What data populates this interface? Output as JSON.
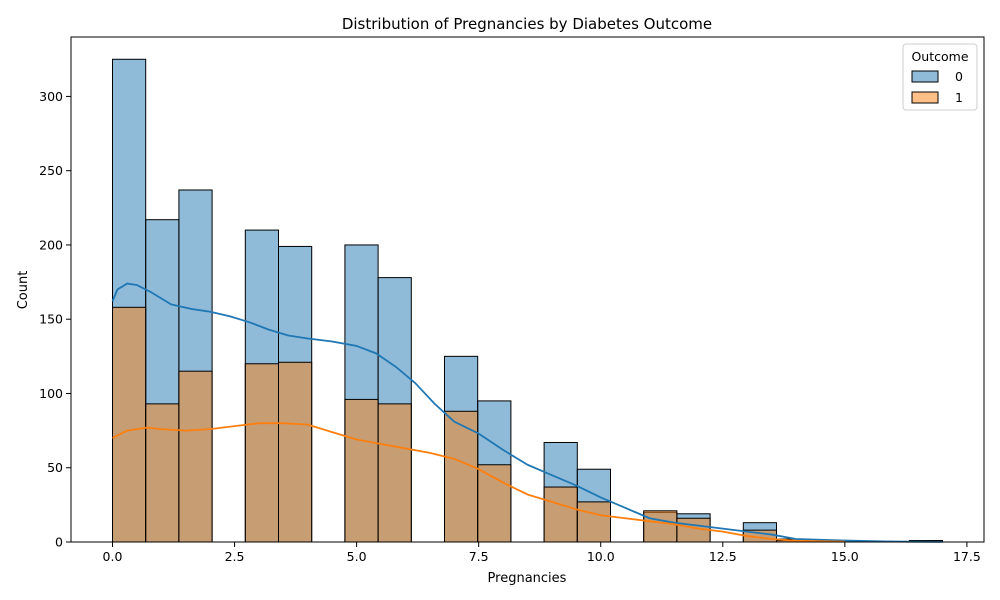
{
  "chart_data": {
    "type": "bar",
    "title": "Distribution of Pregnancies by Diabetes Outcome",
    "xlabel": "Pregnancies",
    "ylabel": "Count",
    "xlim": [
      -0.85,
      17.85
    ],
    "ylim": [
      0,
      340
    ],
    "xticks": [
      0.0,
      2.5,
      5.0,
      7.5,
      10.0,
      12.5,
      15.0,
      17.5
    ],
    "xtick_labels": [
      "0.0",
      "2.5",
      "5.0",
      "7.5",
      "10.0",
      "12.5",
      "15.0",
      "17.5"
    ],
    "yticks": [
      0,
      50,
      100,
      150,
      200,
      250,
      300
    ],
    "ytick_labels": [
      "0",
      "50",
      "100",
      "150",
      "200",
      "250",
      "300"
    ],
    "bin_width": 0.68,
    "bin_left_edges": [
      0.0,
      0.68,
      1.36,
      2.72,
      3.4,
      4.76,
      5.44,
      6.8,
      7.48,
      8.84,
      9.52,
      10.88,
      11.56,
      12.92,
      13.6,
      16.32
    ],
    "legend": {
      "title": "Outcome",
      "placement": "top-right",
      "entries": [
        "0",
        "1"
      ]
    },
    "series": [
      {
        "name": "0",
        "color": "#1f77b4",
        "values": [
          325,
          217,
          237,
          210,
          199,
          200,
          178,
          125,
          95,
          67,
          49,
          20,
          19,
          13,
          2,
          1
        ],
        "kde": [
          [
            0.0,
            162
          ],
          [
            0.1,
            170
          ],
          [
            0.3,
            174
          ],
          [
            0.5,
            173
          ],
          [
            0.8,
            168
          ],
          [
            1.2,
            160
          ],
          [
            1.6,
            157
          ],
          [
            2.0,
            155
          ],
          [
            2.4,
            152
          ],
          [
            2.8,
            148
          ],
          [
            3.2,
            143
          ],
          [
            3.6,
            139
          ],
          [
            4.0,
            137
          ],
          [
            4.5,
            135
          ],
          [
            5.0,
            132
          ],
          [
            5.4,
            127
          ],
          [
            5.8,
            118
          ],
          [
            6.2,
            107
          ],
          [
            6.6,
            93
          ],
          [
            7.0,
            81
          ],
          [
            7.5,
            73
          ],
          [
            8.0,
            62
          ],
          [
            8.5,
            52
          ],
          [
            9.0,
            45
          ],
          [
            9.5,
            38
          ],
          [
            10.0,
            30
          ],
          [
            10.5,
            23
          ],
          [
            11.0,
            16
          ],
          [
            11.5,
            13
          ],
          [
            12.0,
            11
          ],
          [
            12.5,
            9
          ],
          [
            13.0,
            7
          ],
          [
            13.5,
            5
          ],
          [
            14.0,
            2
          ],
          [
            15.0,
            1
          ],
          [
            16.0,
            0.3
          ],
          [
            17.0,
            0.1
          ]
        ]
      },
      {
        "name": "1",
        "color": "#ff7f0e",
        "values": [
          158,
          93,
          115,
          120,
          121,
          96,
          93,
          88,
          52,
          37,
          27,
          21,
          16,
          8,
          1,
          0
        ],
        "kde": [
          [
            0.0,
            70
          ],
          [
            0.3,
            75
          ],
          [
            0.7,
            77
          ],
          [
            1.0,
            76
          ],
          [
            1.5,
            75
          ],
          [
            2.0,
            76
          ],
          [
            2.5,
            78
          ],
          [
            3.0,
            80
          ],
          [
            3.5,
            80
          ],
          [
            4.0,
            79
          ],
          [
            4.5,
            74
          ],
          [
            5.0,
            69
          ],
          [
            5.5,
            66
          ],
          [
            6.0,
            63
          ],
          [
            6.5,
            60
          ],
          [
            7.0,
            56
          ],
          [
            7.5,
            49
          ],
          [
            8.0,
            40
          ],
          [
            8.5,
            32
          ],
          [
            9.0,
            27
          ],
          [
            9.5,
            22
          ],
          [
            10.0,
            18
          ],
          [
            10.5,
            16
          ],
          [
            11.0,
            14
          ],
          [
            11.5,
            12
          ],
          [
            12.0,
            9
          ],
          [
            12.5,
            7
          ],
          [
            13.0,
            4
          ],
          [
            13.5,
            2
          ],
          [
            14.0,
            0.8
          ],
          [
            15.0,
            0.2
          ]
        ]
      }
    ]
  }
}
